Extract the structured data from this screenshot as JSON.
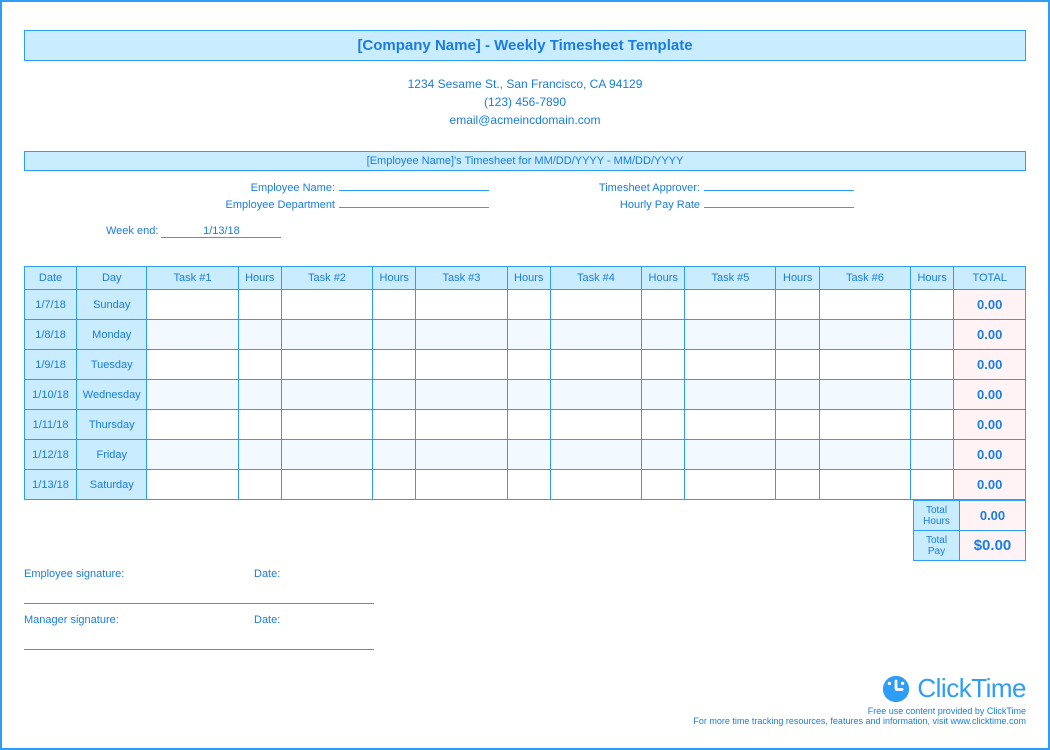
{
  "title": "[Company Name] - Weekly Timesheet Template",
  "header": {
    "address": "1234 Sesame St.,  San Francisco, CA 94129",
    "phone": "(123) 456-7890",
    "email": "email@acmeincdomain.com"
  },
  "subtitle": "[Employee Name]'s Timesheet for MM/DD/YYYY - MM/DD/YYYY",
  "info": {
    "employee_name_label": "Employee Name:",
    "employee_dept_label": "Employee Department",
    "approver_label": "Timesheet Approver:",
    "rate_label": "Hourly Pay Rate",
    "week_end_label": "Week end:",
    "week_end_value": "1/13/18"
  },
  "table": {
    "columns": [
      "Date",
      "Day",
      "Task #1",
      "Hours",
      "Task #2",
      "Hours",
      "Task #3",
      "Hours",
      "Task #4",
      "Hours",
      "Task #5",
      "Hours",
      "Task #6",
      "Hours",
      "TOTAL"
    ],
    "rows": [
      {
        "date": "1/7/18",
        "day": "Sunday",
        "total": "0.00"
      },
      {
        "date": "1/8/18",
        "day": "Monday",
        "total": "0.00"
      },
      {
        "date": "1/9/18",
        "day": "Tuesday",
        "total": "0.00"
      },
      {
        "date": "1/10/18",
        "day": "Wednesday",
        "total": "0.00"
      },
      {
        "date": "1/11/18",
        "day": "Thursday",
        "total": "0.00"
      },
      {
        "date": "1/12/18",
        "day": "Friday",
        "total": "0.00"
      },
      {
        "date": "1/13/18",
        "day": "Saturday",
        "total": "0.00"
      }
    ],
    "alt_row_bg": "#f2faff",
    "border_color": "#2e9df7",
    "header_bg": "#c9ecff",
    "datecell_bg": "#c9ecff",
    "total_bg": "#fff3f5"
  },
  "summary": {
    "total_hours_label": "Total Hours",
    "total_hours_value": "0.00",
    "total_pay_label": "Total Pay",
    "total_pay_value": "$0.00"
  },
  "signatures": {
    "employee_label": "Employee signature:",
    "manager_label": "Manager signature:",
    "date_label": "Date:"
  },
  "footer": {
    "brand": "ClickTime",
    "line1": "Free use content provided by ClickTime",
    "line2": "For more time tracking resources, features and information, visit www.clicktime.com"
  },
  "colors": {
    "accent": "#2e9df7",
    "text": "#1a7de0",
    "header_bg": "#c9ecff",
    "pink_bg": "#fff3f5"
  }
}
